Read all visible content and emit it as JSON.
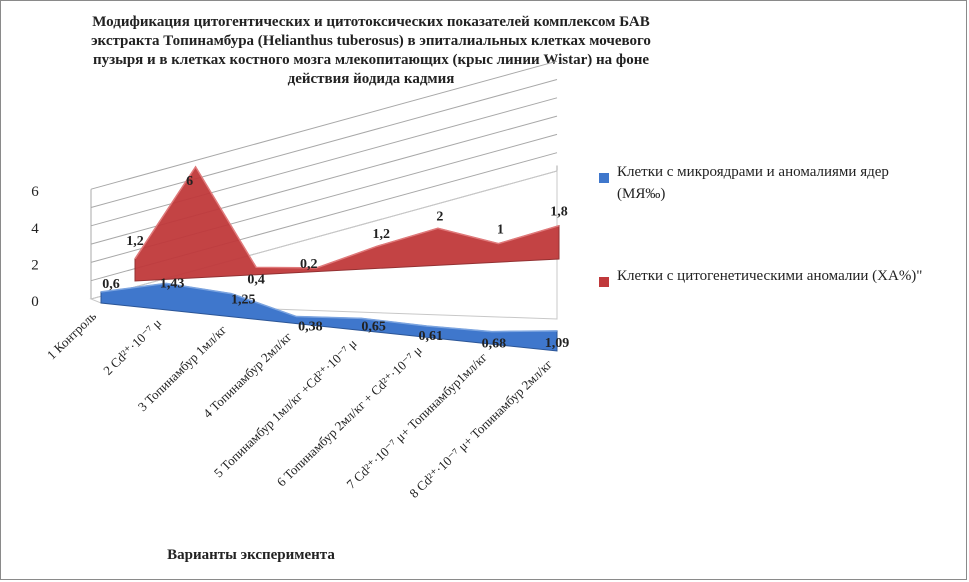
{
  "chart_data": {
    "type": "area",
    "title": "Модификация цитогентических и цитотоксических показателей комплексом БАВ экстракта Топинамбура (Helianthus  tuberosus) в эпиталиальных клетках мочевого пузыря и в клетках костного мозга млекопитающих (крыс линии Wistar) на фоне действия йодида кадмия",
    "xlabel": "Варианты эксперимента",
    "ylabel": "",
    "ylim": [
      0,
      6
    ],
    "yticks": [
      "0",
      "2",
      "4",
      "6"
    ],
    "grid": true,
    "legend_position": "right",
    "categories": [
      "1 Контроль",
      "2 Cd²⁺·10⁻⁷ μ",
      "3 Топинамбур 1мл/кг",
      "4 Топинамбур 2мл/кг",
      "5 Топинамбур 1мл/кг +Cd²⁺·10⁻⁷ μ",
      "6 Топинамбур 2мл/кг + Cd²⁺·10⁻⁷ μ",
      "7 Cd²⁺·10⁻⁷ μ+ Топинамбур1мл/кг",
      "8 Cd²⁺·10⁻⁷ μ+ Топинамбур 2мл/кг"
    ],
    "series": [
      {
        "name": "Клетки с микроядрами и аномалиями ядер (МЯ‰)",
        "color": "#3f77cc",
        "values": [
          0.6,
          1.43,
          1.25,
          0.38,
          0.65,
          0.61,
          0.68,
          1.09
        ],
        "labels": [
          "0,6",
          "1,43",
          "1,25",
          "0,38",
          "0,65",
          "0,61",
          "0,68",
          "1,09"
        ]
      },
      {
        "name": "Клетки с цитогенетическими аномалии (ХА%)\"",
        "color": "#c0393b",
        "values": [
          1.2,
          6,
          0.4,
          0.2,
          1.2,
          2,
          1,
          1.8
        ],
        "labels": [
          "1,2",
          "6",
          "0,4",
          "0,2",
          "1,2",
          "2",
          "1",
          "1,8"
        ]
      }
    ]
  }
}
